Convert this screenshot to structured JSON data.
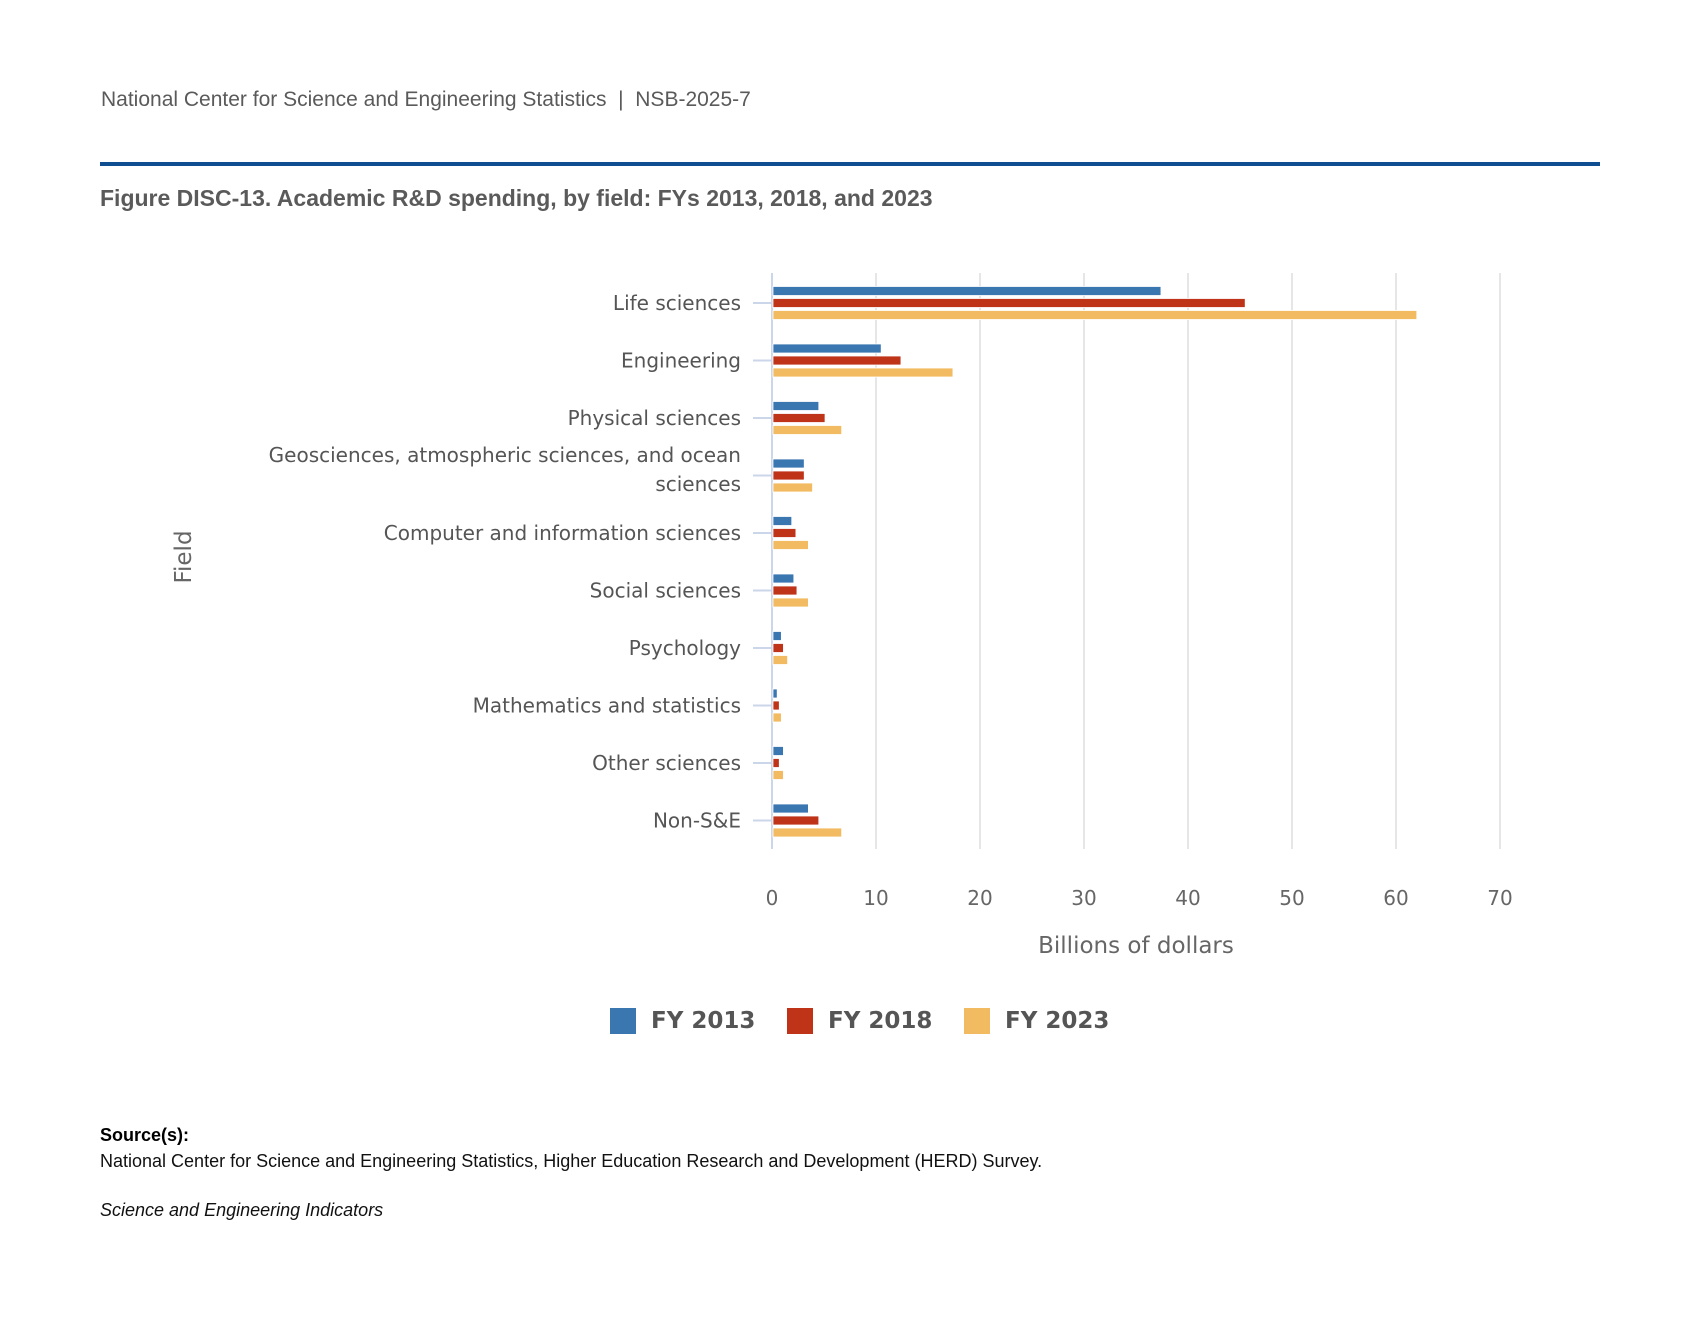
{
  "header": {
    "organization": "National Center for Science and Engineering Statistics",
    "separator": "|",
    "report_id": "NSB-2025-7",
    "rule_color": "#0f4f91"
  },
  "figure_title": "Figure DISC-13. Academic R&D spending, by field: FYs 2013, 2018, and 2023",
  "chart_data": {
    "type": "bar",
    "orientation": "horizontal",
    "title": "Figure DISC-13. Academic R&D spending, by field: FYs 2013, 2018, and 2023",
    "xlabel": "Billions of dollars",
    "ylabel": "Field",
    "xlim": [
      0,
      70
    ],
    "xticks": [
      0,
      10,
      20,
      30,
      40,
      50,
      60,
      70
    ],
    "grid": true,
    "legend_position": "bottom-center",
    "categories": [
      "Life sciences",
      "Engineering",
      "Physical sciences",
      "Geosciences, atmospheric sciences, and ocean sciences",
      "Computer and information sciences",
      "Social sciences",
      "Psychology",
      "Mathematics and statistics",
      "Other sciences",
      "Non-S&E"
    ],
    "category_lines": [
      [
        "Life sciences"
      ],
      [
        "Engineering"
      ],
      [
        "Physical sciences"
      ],
      [
        "Geosciences, atmospheric sciences, and ocean",
        "sciences"
      ],
      [
        "Computer and information sciences"
      ],
      [
        "Social sciences"
      ],
      [
        "Psychology"
      ],
      [
        "Mathematics and statistics"
      ],
      [
        "Other sciences"
      ],
      [
        "Non-S&E"
      ]
    ],
    "series": [
      {
        "name": "FY 2013",
        "color": "#3a76b0",
        "values": [
          37.4,
          10.5,
          4.5,
          3.1,
          1.9,
          2.1,
          0.9,
          0.5,
          1.1,
          3.5
        ]
      },
      {
        "name": "FY 2018",
        "color": "#bf3318",
        "values": [
          45.5,
          12.4,
          5.1,
          3.1,
          2.3,
          2.4,
          1.1,
          0.7,
          0.7,
          4.5
        ]
      },
      {
        "name": "FY 2023",
        "color": "#f2bb62",
        "values": [
          62.0,
          17.4,
          6.7,
          3.9,
          3.5,
          3.5,
          1.5,
          0.9,
          1.1,
          6.7
        ]
      }
    ]
  },
  "source": {
    "heading": "Source(s):",
    "text": "National Center for Science and Engineering Statistics, Higher Education Research and Development (HERD) Survey.",
    "publication": "Science and Engineering Indicators"
  }
}
